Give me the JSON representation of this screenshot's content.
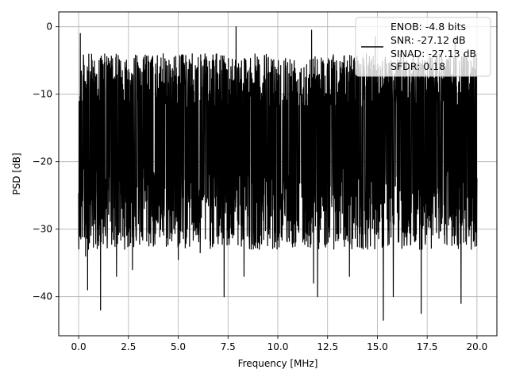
{
  "chart_data": {
    "type": "line",
    "title": "",
    "xlabel": "Frequency [MHz]",
    "ylabel": "PSD [dB]",
    "xlim": [
      -1.0,
      21.0
    ],
    "ylim": [
      -45.8,
      2.2
    ],
    "xticks": [
      0.0,
      2.5,
      5.0,
      7.5,
      10.0,
      12.5,
      15.0,
      17.5,
      20.0
    ],
    "xtick_labels": [
      "0.0",
      "2.5",
      "5.0",
      "7.5",
      "10.0",
      "12.5",
      "15.0",
      "17.5",
      "20.0"
    ],
    "yticks": [
      0,
      -10,
      -20,
      -30,
      -40
    ],
    "ytick_labels": [
      "0",
      "−10",
      "−20",
      "−30",
      "−40"
    ],
    "grid": true,
    "legend_position": "top-right",
    "legend_lines": [
      "ENOB: -4.8 bits",
      "SNR: -27.12 dB",
      "SINAD: -27.13 dB",
      "SFDR: 0.18"
    ],
    "series": [
      {
        "color": "#000000",
        "description_points": {
          "x_range": [
            0.0,
            20.0
          ],
          "envelope_top_approx": -2,
          "envelope_bottom_approx": -27,
          "notable_dips": [
            [
              0.35,
              -34
            ],
            [
              0.45,
              -39
            ],
            [
              1.1,
              -42
            ],
            [
              1.9,
              -37
            ],
            [
              2.7,
              -36
            ],
            [
              5.0,
              -34.5
            ],
            [
              6.1,
              -33.5
            ],
            [
              7.3,
              -40
            ],
            [
              8.3,
              -37
            ],
            [
              11.8,
              -38
            ],
            [
              12.0,
              -40
            ],
            [
              13.6,
              -37
            ],
            [
              15.3,
              -43.5
            ],
            [
              15.8,
              -40
            ],
            [
              17.2,
              -42.5
            ],
            [
              19.2,
              -41
            ]
          ],
          "notable_peaks": [
            [
              0.08,
              -1
            ],
            [
              7.9,
              0
            ],
            [
              11.7,
              -0.5
            ],
            [
              14.9,
              -1.5
            ],
            [
              18.9,
              -1.5
            ]
          ]
        }
      }
    ]
  }
}
